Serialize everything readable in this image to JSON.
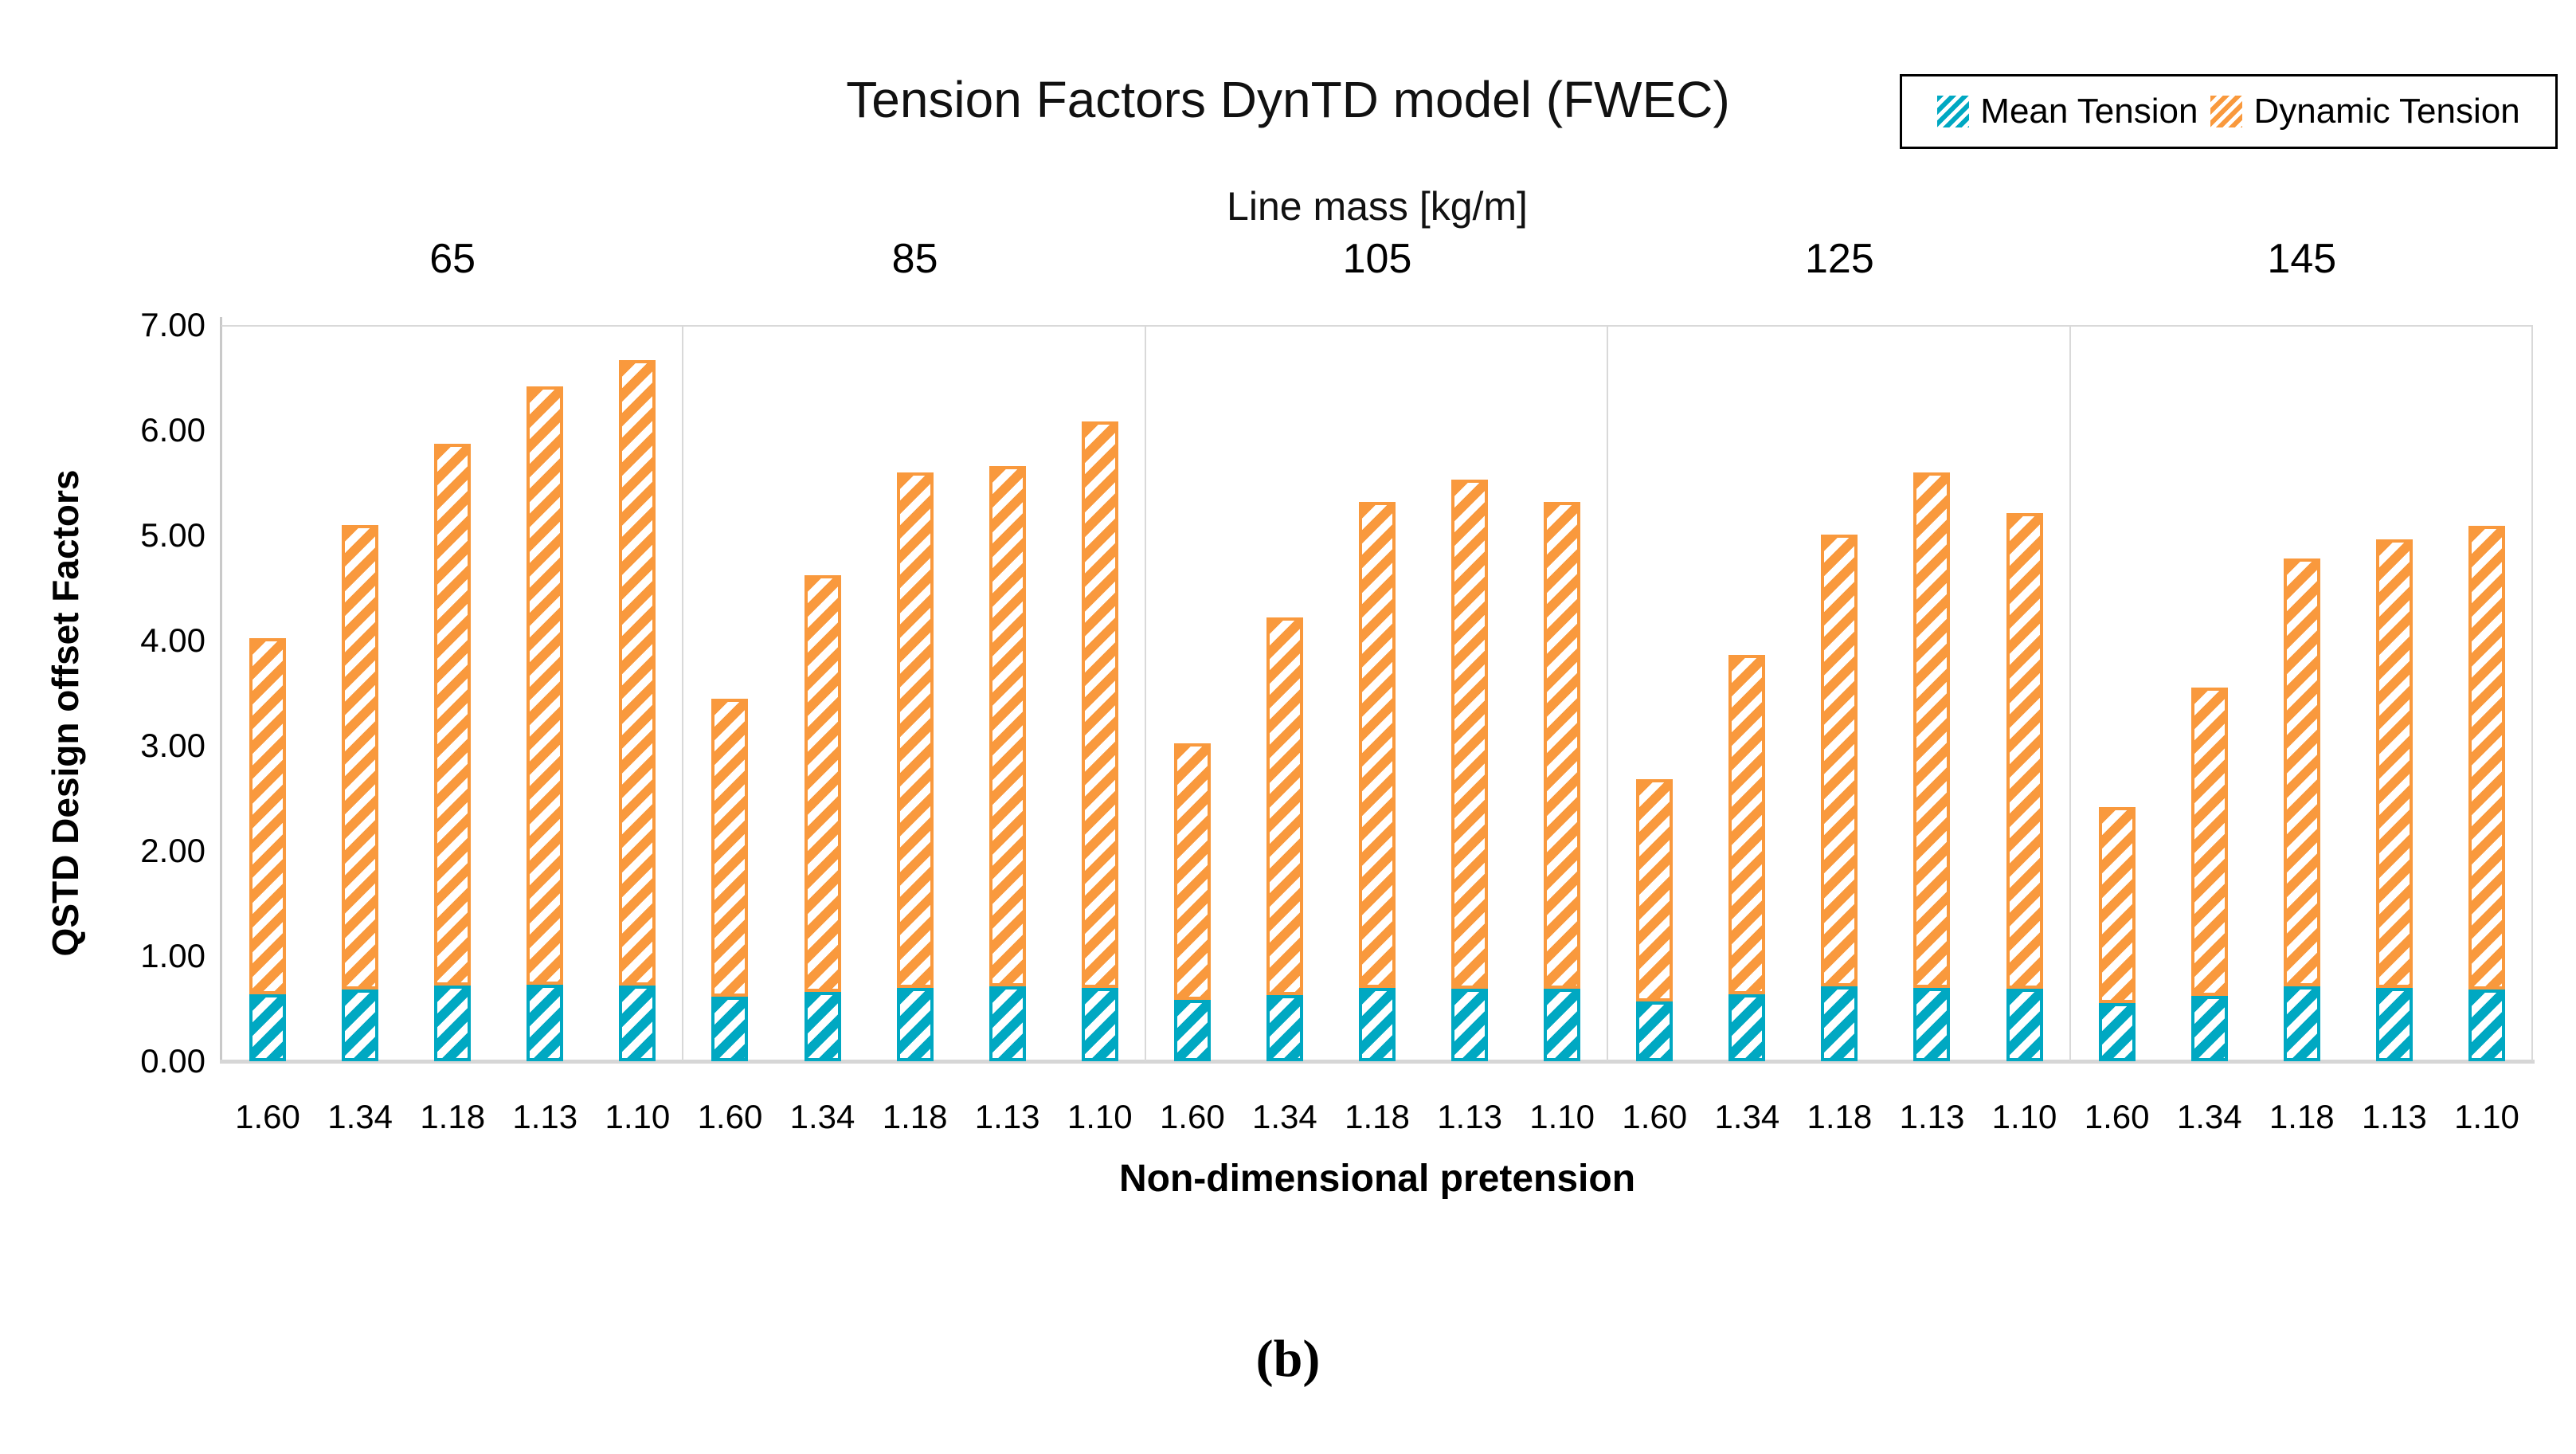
{
  "chart_data": {
    "type": "bar",
    "variant": "stacked-grouped",
    "title": "Tension Factors DynTD model (FWEC)",
    "group_axis_label": "Line mass [kg/m]",
    "groups": [
      "65",
      "85",
      "105",
      "125",
      "145"
    ],
    "categories": [
      "1.60",
      "1.34",
      "1.18",
      "1.13",
      "1.10"
    ],
    "xlabel": "Non-dimensional pretension",
    "ylabel": "QSTD Design offset Factors",
    "ylim": [
      0,
      7
    ],
    "yticks": [
      "7.00",
      "6.00",
      "5.00",
      "4.00",
      "3.00",
      "2.00",
      "1.00",
      "0.00"
    ],
    "grid": "panel-borders-only",
    "legend_position": "top-right",
    "series": [
      {
        "name": "Mean Tension",
        "color": "#00a8c2",
        "pattern": "diagonal-hatch",
        "values": [
          [
            0.64,
            0.68,
            0.72,
            0.73,
            0.72
          ],
          [
            0.61,
            0.66,
            0.7,
            0.71,
            0.7
          ],
          [
            0.58,
            0.63,
            0.7,
            0.69,
            0.69
          ],
          [
            0.57,
            0.64,
            0.71,
            0.7,
            0.69
          ],
          [
            0.55,
            0.62,
            0.71,
            0.7,
            0.68
          ]
        ]
      },
      {
        "name": "Dynamic Tension",
        "color": "#f9993d",
        "pattern": "diagonal-hatch",
        "values": [
          [
            3.38,
            4.42,
            5.15,
            5.69,
            5.95
          ],
          [
            2.84,
            3.96,
            4.9,
            4.95,
            5.38
          ],
          [
            2.44,
            3.59,
            4.62,
            4.84,
            4.63
          ],
          [
            2.11,
            3.22,
            4.3,
            4.9,
            4.52
          ],
          [
            1.87,
            2.93,
            4.07,
            4.26,
            4.41
          ]
        ]
      }
    ],
    "stack_totals": [
      [
        4.02,
        5.1,
        5.87,
        6.42,
        6.67
      ],
      [
        3.45,
        4.62,
        5.6,
        5.66,
        6.08
      ],
      [
        3.02,
        4.22,
        5.32,
        5.53,
        5.32
      ],
      [
        2.68,
        3.86,
        5.01,
        5.6,
        5.21
      ],
      [
        2.42,
        3.55,
        4.78,
        4.96,
        5.09
      ]
    ],
    "caption": "(b)"
  },
  "legend": {
    "mean_label": "Mean Tension",
    "dynamic_label": "Dynamic Tension"
  }
}
